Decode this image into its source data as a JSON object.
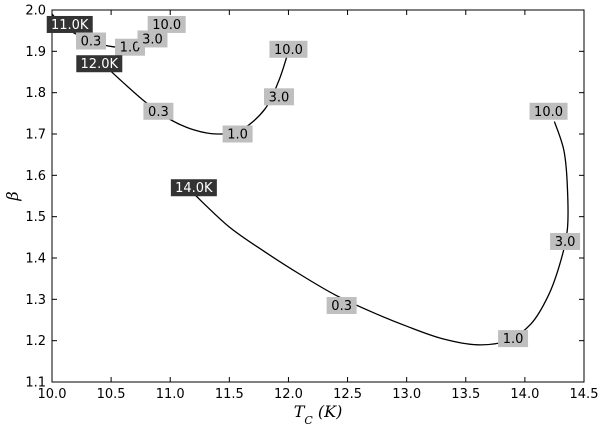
{
  "chart_data": {
    "type": "line",
    "xlabel": "T_C (K)",
    "ylabel": "β",
    "xlim": [
      10.0,
      14.5
    ],
    "ylim": [
      1.1,
      2.0
    ],
    "x_ticks": [
      10.0,
      10.5,
      11.0,
      11.5,
      12.0,
      12.5,
      13.0,
      13.5,
      14.0,
      14.5
    ],
    "y_ticks": [
      1.1,
      1.2,
      1.3,
      1.4,
      1.5,
      1.6,
      1.7,
      1.8,
      1.9,
      2.0
    ],
    "grid": false,
    "colors": {
      "line": "#000000",
      "temp_box": "#333333",
      "temp_text": "#ffffff",
      "val_box": "#bfbfbf",
      "val_text": "#000000"
    },
    "series": [
      {
        "name": "11.0K",
        "x": [
          10.0,
          10.1,
          10.25,
          10.4,
          10.55,
          10.65,
          10.75,
          10.85,
          10.95
        ],
        "y": [
          1.99,
          1.96,
          1.935,
          1.918,
          1.91,
          1.912,
          1.922,
          1.94,
          1.965
        ],
        "labels": [
          {
            "text": "11.0K",
            "kind": "temp",
            "x": 10.15,
            "y": 1.965
          },
          {
            "text": "0.3",
            "kind": "value",
            "x": 10.33,
            "y": 1.925
          },
          {
            "text": "1.0",
            "kind": "value",
            "x": 10.66,
            "y": 1.91
          },
          {
            "text": "3.0",
            "kind": "value",
            "x": 10.85,
            "y": 1.93
          },
          {
            "text": "10.0",
            "kind": "value",
            "x": 10.97,
            "y": 1.965
          }
        ]
      },
      {
        "name": "12.0K",
        "x": [
          10.45,
          10.6,
          10.8,
          11.0,
          11.2,
          11.4,
          11.6,
          11.8,
          11.92,
          12.0
        ],
        "y": [
          1.865,
          1.825,
          1.775,
          1.735,
          1.71,
          1.7,
          1.71,
          1.76,
          1.83,
          1.9
        ],
        "labels": [
          {
            "text": "12.0K",
            "kind": "temp",
            "x": 10.4,
            "y": 1.87
          },
          {
            "text": "0.3",
            "kind": "value",
            "x": 10.9,
            "y": 1.755
          },
          {
            "text": "1.0",
            "kind": "value",
            "x": 11.57,
            "y": 1.7
          },
          {
            "text": "3.0",
            "kind": "value",
            "x": 11.92,
            "y": 1.79
          },
          {
            "text": "10.0",
            "kind": "value",
            "x": 12.0,
            "y": 1.905
          }
        ]
      },
      {
        "name": "14.0K",
        "x": [
          11.2,
          11.5,
          11.8,
          12.1,
          12.4,
          12.7,
          13.0,
          13.3,
          13.6,
          13.85,
          14.05,
          14.2,
          14.3,
          14.36,
          14.36,
          14.33,
          14.25
        ],
        "y": [
          1.555,
          1.475,
          1.415,
          1.36,
          1.31,
          1.27,
          1.235,
          1.205,
          1.19,
          1.2,
          1.24,
          1.31,
          1.39,
          1.47,
          1.57,
          1.66,
          1.73
        ],
        "labels": [
          {
            "text": "14.0K",
            "kind": "temp",
            "x": 11.2,
            "y": 1.57
          },
          {
            "text": "0.3",
            "kind": "value",
            "x": 12.45,
            "y": 1.285
          },
          {
            "text": "1.0",
            "kind": "value",
            "x": 13.9,
            "y": 1.205
          },
          {
            "text": "3.0",
            "kind": "value",
            "x": 14.34,
            "y": 1.44
          },
          {
            "text": "10.0",
            "kind": "value",
            "x": 14.2,
            "y": 1.755
          }
        ]
      }
    ]
  }
}
